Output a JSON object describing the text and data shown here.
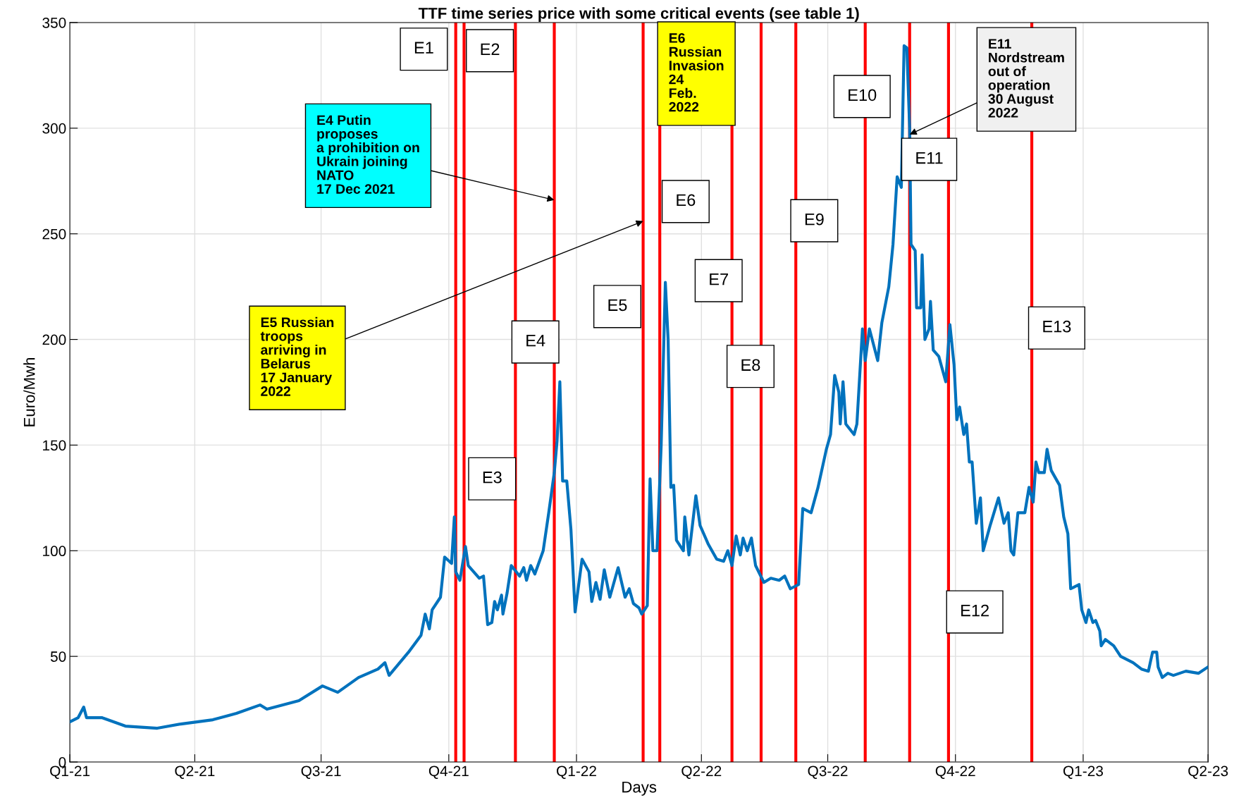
{
  "chart_data": {
    "type": "line",
    "title": "TTF time series price with some critical events (see table 1)",
    "xlabel": "Days",
    "ylabel": "Euro/Mwh",
    "x": [
      "2021-01-01",
      "2021-01-07",
      "2021-01-11",
      "2021-01-13",
      "2021-01-24",
      "2021-02-10",
      "2021-03-05",
      "2021-03-22",
      "2021-04-14",
      "2021-05-01",
      "2021-05-18",
      "2021-05-23",
      "2021-06-15",
      "2021-07-02",
      "2021-07-13",
      "2021-07-28",
      "2021-08-11",
      "2021-08-16",
      "2021-08-19",
      "2021-09-02",
      "2021-09-11",
      "2021-09-14",
      "2021-09-17",
      "2021-09-19",
      "2021-09-25",
      "2021-09-28",
      "2021-10-03",
      "2021-10-05",
      "2021-10-06",
      "2021-10-09",
      "2021-10-13",
      "2021-10-15",
      "2021-10-23",
      "2021-10-26",
      "2021-10-29",
      "2021-11-01",
      "2021-11-03",
      "2021-11-05",
      "2021-11-08",
      "2021-11-09",
      "2021-11-12",
      "2021-11-15",
      "2021-11-21",
      "2021-11-24",
      "2021-11-26",
      "2021-11-29",
      "2021-12-02",
      "2021-12-08",
      "2021-12-12",
      "2021-12-16",
      "2021-12-18",
      "2021-12-20",
      "2021-12-22",
      "2021-12-25",
      "2021-12-28",
      "2021-12-31",
      "2022-01-05",
      "2022-01-10",
      "2022-01-12",
      "2022-01-15",
      "2022-01-18",
      "2022-01-21",
      "2022-01-25",
      "2022-01-31",
      "2022-02-05",
      "2022-02-08",
      "2022-02-11",
      "2022-02-15",
      "2022-02-17",
      "2022-02-21",
      "2022-02-23",
      "2022-02-25",
      "2022-02-28",
      "2022-03-03",
      "2022-03-06",
      "2022-03-08",
      "2022-03-10",
      "2022-03-12",
      "2022-03-14",
      "2022-03-19",
      "2022-03-20",
      "2022-03-23",
      "2022-03-28",
      "2022-03-31",
      "2022-04-06",
      "2022-04-12",
      "2022-04-17",
      "2022-04-20",
      "2022-04-23",
      "2022-04-26",
      "2022-04-29",
      "2022-05-01",
      "2022-05-04",
      "2022-05-07",
      "2022-05-10",
      "2022-05-16",
      "2022-05-21",
      "2022-05-27",
      "2022-05-31",
      "2022-06-04",
      "2022-06-10",
      "2022-06-13",
      "2022-06-19",
      "2022-06-24",
      "2022-06-30",
      "2022-07-03",
      "2022-07-06",
      "2022-07-09",
      "2022-07-10",
      "2022-07-12",
      "2022-07-14",
      "2022-07-20",
      "2022-07-22",
      "2022-07-26",
      "2022-07-28",
      "2022-07-31",
      "2022-08-06",
      "2022-08-09",
      "2022-08-14",
      "2022-08-17",
      "2022-08-20",
      "2022-08-23",
      "2022-08-25",
      "2022-08-27",
      "2022-08-29",
      "2022-08-30",
      "2022-09-02",
      "2022-09-03",
      "2022-09-06",
      "2022-09-07",
      "2022-09-09",
      "2022-09-12",
      "2022-09-13",
      "2022-09-15",
      "2022-09-19",
      "2022-09-24",
      "2022-09-27",
      "2022-09-30",
      "2022-10-02",
      "2022-10-04",
      "2022-10-07",
      "2022-10-09",
      "2022-10-11",
      "2022-10-13",
      "2022-10-16",
      "2022-10-19",
      "2022-10-21",
      "2022-10-26",
      "2022-11-01",
      "2022-11-05",
      "2022-11-08",
      "2022-11-10",
      "2022-11-12",
      "2022-11-15",
      "2022-11-20",
      "2022-11-23",
      "2022-11-26",
      "2022-11-28",
      "2022-11-30",
      "2022-12-04",
      "2022-12-06",
      "2022-12-09",
      "2022-12-15",
      "2022-12-18",
      "2022-12-21",
      "2022-12-23",
      "2022-12-29",
      "2022-12-31",
      "2023-01-03",
      "2023-01-05",
      "2023-01-08",
      "2023-01-10",
      "2023-01-13",
      "2023-01-14",
      "2023-01-17",
      "2023-01-23",
      "2023-01-28",
      "2023-02-06",
      "2023-02-12",
      "2023-02-17",
      "2023-02-20",
      "2023-02-23",
      "2023-02-24",
      "2023-02-27",
      "2023-03-03",
      "2023-03-07",
      "2023-03-16",
      "2023-03-25",
      "2023-04-01"
    ],
    "series": [
      {
        "color": "#0072bd",
        "values": [
          19,
          21,
          26,
          21,
          21,
          17,
          16,
          18,
          20,
          23,
          27,
          25,
          29,
          36,
          33,
          40,
          44,
          47,
          41,
          52,
          60,
          70,
          63,
          72,
          78,
          97,
          94,
          116,
          90,
          86,
          102,
          93,
          87,
          88,
          65,
          66,
          76,
          72,
          79,
          70,
          80,
          93,
          88,
          92,
          86,
          93,
          89,
          100,
          118,
          137,
          152,
          180,
          133,
          133,
          110,
          71,
          96,
          90,
          76,
          85,
          77,
          91,
          78,
          92,
          78,
          82,
          75,
          73,
          70,
          74,
          134,
          100,
          100,
          150,
          227,
          200,
          130,
          131,
          105,
          100,
          116,
          98,
          126,
          112,
          103,
          96,
          95,
          100,
          93,
          107,
          98,
          106,
          100,
          106,
          93,
          85,
          87,
          86,
          88,
          82,
          84,
          120,
          118,
          130,
          148,
          155,
          183,
          175,
          160,
          180,
          160,
          155,
          160,
          205,
          190,
          205,
          190,
          208,
          225,
          245,
          277,
          272,
          339,
          338,
          300,
          245,
          242,
          215,
          215,
          240,
          200,
          205,
          218,
          195,
          192,
          180,
          207,
          188,
          162,
          168,
          155,
          160,
          142,
          142,
          113,
          125,
          100,
          112,
          125,
          113,
          118,
          100,
          98,
          118,
          118,
          130,
          123,
          142,
          137,
          137,
          148,
          138,
          131,
          116,
          108,
          82,
          84,
          72,
          66,
          72,
          66,
          67,
          62,
          55,
          58,
          55,
          50,
          47,
          44,
          43,
          52,
          52,
          45,
          40,
          42,
          41,
          43,
          42,
          45
        ]
      }
    ],
    "xlim": [
      "2021-01-01",
      "2023-04-01"
    ],
    "xticks": [
      {
        "value": "2021-01-01",
        "label": "Q1-21"
      },
      {
        "value": "2021-04-01",
        "label": "Q2-21"
      },
      {
        "value": "2021-07-01",
        "label": "Q3-21"
      },
      {
        "value": "2021-10-01",
        "label": "Q4-21"
      },
      {
        "value": "2022-01-01",
        "label": "Q1-22"
      },
      {
        "value": "2022-04-01",
        "label": "Q2-22"
      },
      {
        "value": "2022-07-01",
        "label": "Q3-22"
      },
      {
        "value": "2022-10-01",
        "label": "Q4-22"
      },
      {
        "value": "2023-01-01",
        "label": "Q1-23"
      },
      {
        "value": "2023-04-01",
        "label": "Q2-23"
      }
    ],
    "ylim": [
      0,
      350
    ],
    "yticks": [
      0,
      50,
      100,
      150,
      200,
      250,
      300,
      350
    ],
    "grid": true,
    "marker": "none",
    "line_style": "solid",
    "ref_lines": [
      {
        "axis": "x",
        "value": "2021-10-06",
        "color": "#ff0000"
      },
      {
        "axis": "x",
        "value": "2021-10-12",
        "color": "#ff0000"
      },
      {
        "axis": "x",
        "value": "2021-11-18",
        "color": "#ff0000"
      },
      {
        "axis": "x",
        "value": "2021-12-16",
        "color": "#ff0000"
      },
      {
        "axis": "x",
        "value": "2022-02-18",
        "color": "#ff0000"
      },
      {
        "axis": "x",
        "value": "2022-03-02",
        "color": "#ff0000"
      },
      {
        "axis": "x",
        "value": "2022-04-23",
        "color": "#ff0000"
      },
      {
        "axis": "x",
        "value": "2022-05-14",
        "color": "#ff0000"
      },
      {
        "axis": "x",
        "value": "2022-06-08",
        "color": "#ff0000"
      },
      {
        "axis": "x",
        "value": "2022-07-28",
        "color": "#ff0000"
      },
      {
        "axis": "x",
        "value": "2022-08-29",
        "color": "#ff0000"
      },
      {
        "axis": "x",
        "value": "2022-09-26",
        "color": "#ff0000"
      },
      {
        "axis": "x",
        "value": "2022-11-25",
        "color": "#ff0000"
      }
    ],
    "annotations": [
      "E1",
      "E2",
      "E3",
      "E4",
      "E5",
      "E6",
      "E7",
      "E8",
      "E9",
      "E10",
      "E11",
      "E12",
      "E13",
      {
        "text": "E4 Putin\nproposes\na prohibition on\nUkrain joining\nNATO\n17 Dec 2021",
        "x": "2021-12-16",
        "y": 266
      },
      {
        "text": "E5 Russian\ntroops\narriving in\nBelarus\n17 January\n2022",
        "x": "2022-02-18",
        "y": 256
      },
      {
        "text": "E11\nNordstream\nout of\noperation\n30 August\n2022",
        "x": "2022-08-29",
        "y": 297
      },
      {
        "text": "E6\nRussian\nInvasion\n24\nFeb.\n2022",
        "x": "2022-03-02",
        "y": 347
      }
    ]
  }
}
